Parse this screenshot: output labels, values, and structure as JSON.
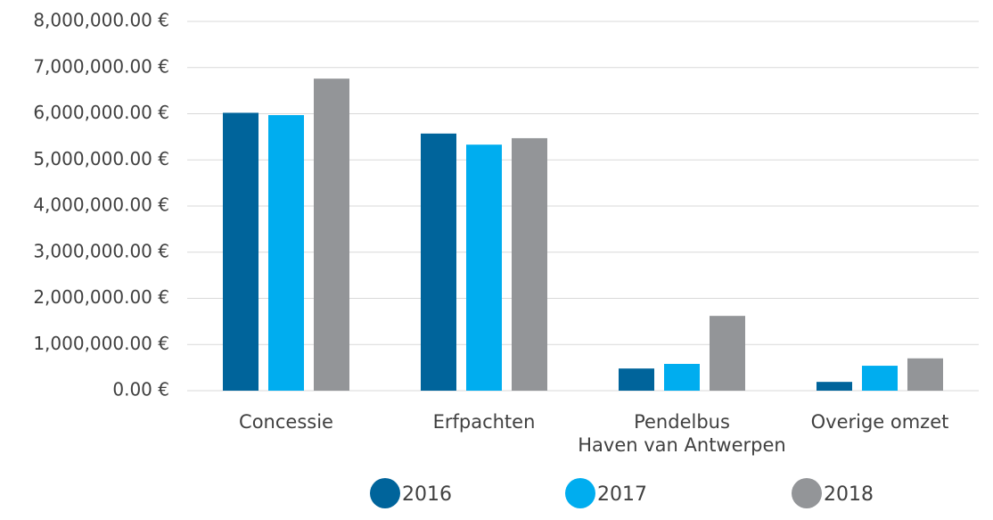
{
  "chart_data": {
    "type": "bar",
    "categories": [
      "Concessie",
      "Erfpachten",
      [
        "Pendelbus",
        "Haven van Antwerpen"
      ],
      "Overige omzet"
    ],
    "series": [
      {
        "name": "2016",
        "color": "#00649b",
        "values": [
          6020000,
          5570000,
          480000,
          190000
        ]
      },
      {
        "name": "2017",
        "color": "#00adef",
        "values": [
          5970000,
          5330000,
          580000,
          540000
        ]
      },
      {
        "name": "2018",
        "color": "#939598",
        "values": [
          6760000,
          5470000,
          1620000,
          700000
        ]
      }
    ],
    "ylim": [
      0,
      8000000
    ],
    "yticks": [
      {
        "value": 0,
        "label": "0.00 €"
      },
      {
        "value": 1000000,
        "label": "1,000,000.00 €"
      },
      {
        "value": 2000000,
        "label": "2,000,000.00 €"
      },
      {
        "value": 3000000,
        "label": "3,000,000.00 €"
      },
      {
        "value": 4000000,
        "label": "4,000,000.00 €"
      },
      {
        "value": 5000000,
        "label": "5,000,000.00 €"
      },
      {
        "value": 6000000,
        "label": "6,000,000.00 €"
      },
      {
        "value": 7000000,
        "label": "7,000,000.00 €"
      },
      {
        "value": 8000000,
        "label": "8,000,000.00 €"
      }
    ],
    "grid": true,
    "legend": "bottom"
  }
}
